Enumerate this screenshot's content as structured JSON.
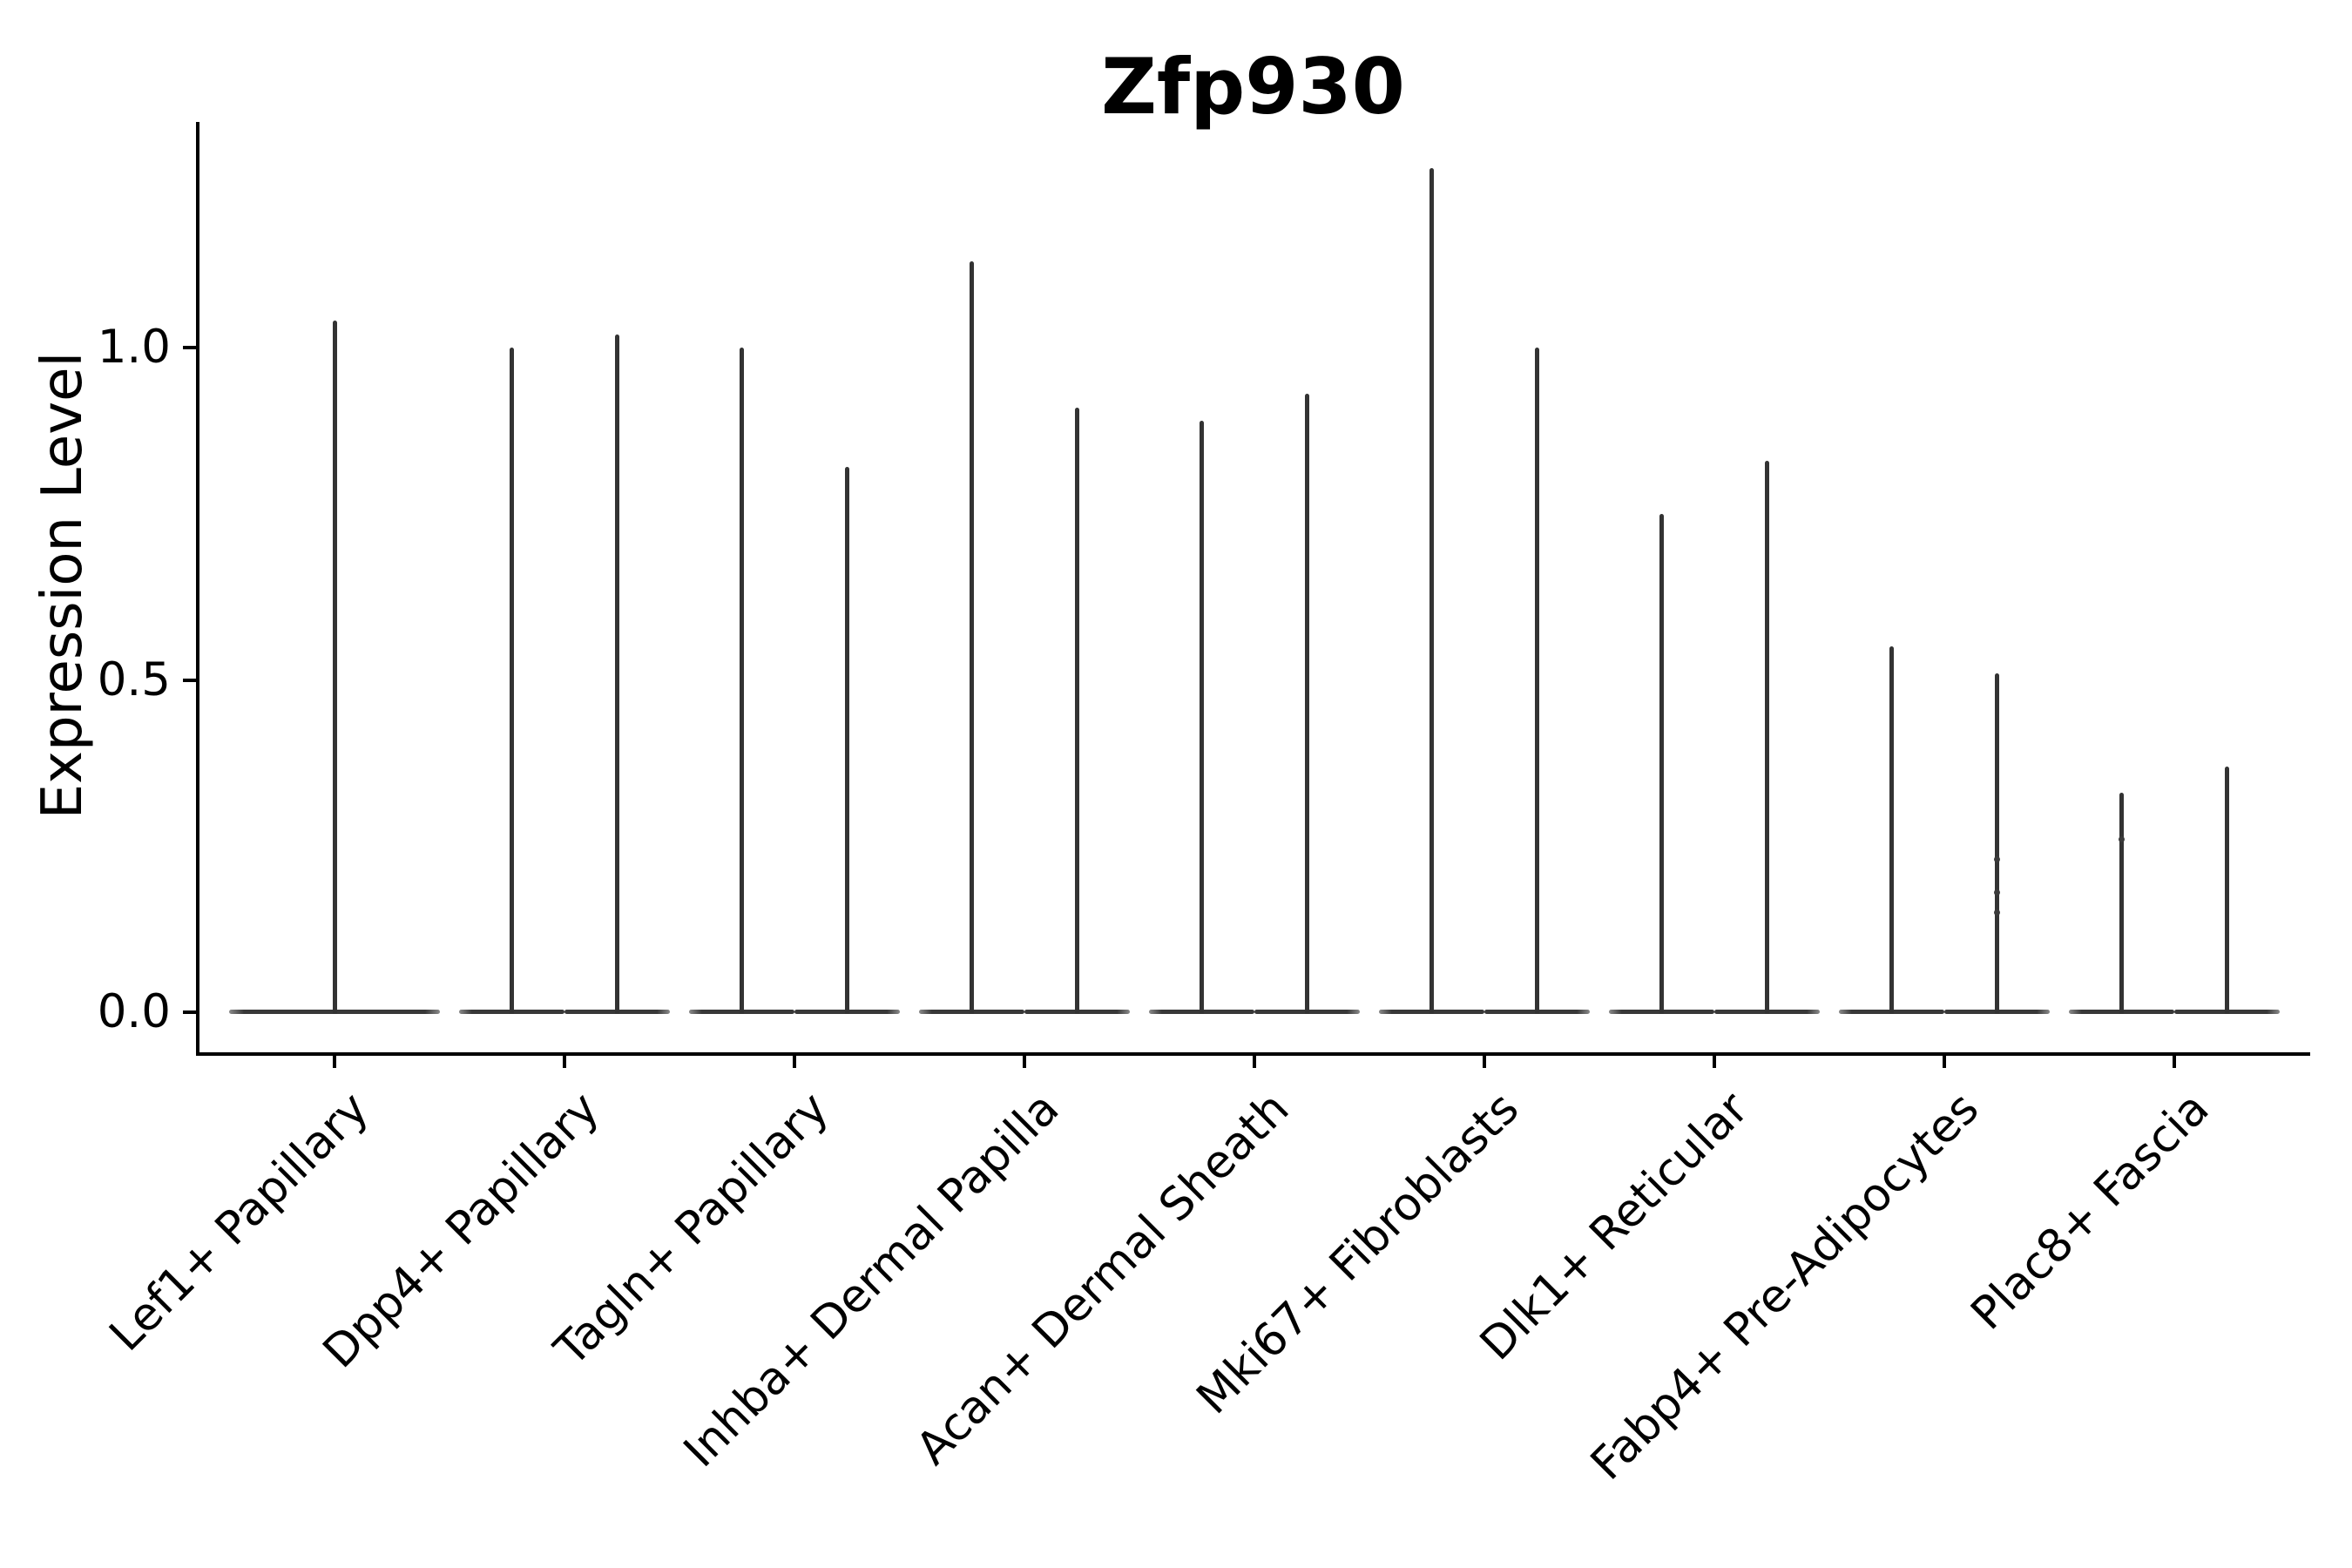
{
  "figure": {
    "background_color": "#ffffff",
    "axis_color": "#000000",
    "violin_color": "#333333",
    "text_color": "#000000"
  },
  "chart_data": {
    "type": "violin",
    "title": "Zfp930",
    "ylabel": "Expression Level",
    "xlabel": "",
    "grid": false,
    "legend_position": "none",
    "ylim": [
      -0.06,
      1.34
    ],
    "yticks": [
      {
        "label": "0.0",
        "value": 0.0
      },
      {
        "label": "0.5",
        "value": 0.5
      },
      {
        "label": "1.0",
        "value": 1.0
      }
    ],
    "categories": [
      "Lef1+ Papillary",
      "Dpp4+ Papillary",
      "Tagln+ Papillary",
      "Inhba+ Dermal Papilla",
      "Acan+ Dermal Sheath",
      "Mki67+ Fibroblasts",
      "Dlk1+ Reticular",
      "Fabp4+ Pre-Adipocytes",
      "Plac8+ Fascia"
    ],
    "violins": [
      {
        "category": "Lef1+ Papillary",
        "min": 0.0,
        "maxima": [
          1.04
        ]
      },
      {
        "category": "Dpp4+ Papillary",
        "min": 0.0,
        "maxima": [
          1.0,
          1.02
        ]
      },
      {
        "category": "Tagln+ Papillary",
        "min": 0.0,
        "maxima": [
          1.0,
          0.82
        ]
      },
      {
        "category": "Inhba+ Dermal Papilla",
        "min": 0.0,
        "maxima": [
          1.13,
          0.91
        ]
      },
      {
        "category": "Acan+ Dermal Sheath",
        "min": 0.0,
        "maxima": [
          0.89,
          0.93
        ]
      },
      {
        "category": "Mki67+ Fibroblasts",
        "min": 0.0,
        "maxima": [
          1.27,
          1.0
        ]
      },
      {
        "category": "Dlk1+ Reticular",
        "min": 0.0,
        "maxima": [
          0.75,
          0.83
        ]
      },
      {
        "category": "Fabp4+ Pre-Adipocytes",
        "min": 0.0,
        "maxima": [
          0.55,
          0.51
        ]
      },
      {
        "category": "Plac8+ Fascia",
        "min": 0.0,
        "maxima": [
          0.33,
          0.37
        ]
      }
    ],
    "outlier_points": [
      {
        "category": "Fabp4+ Pre-Adipocytes",
        "violin": 1,
        "values": [
          0.23,
          0.18,
          0.15
        ]
      },
      {
        "category": "Plac8+ Fascia",
        "violin": 0,
        "values": [
          0.26
        ]
      }
    ]
  }
}
